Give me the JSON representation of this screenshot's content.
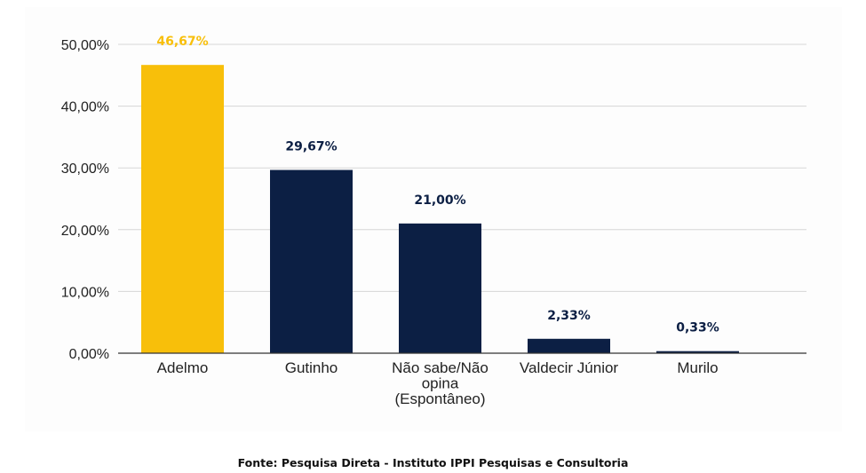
{
  "colors": {
    "highlight": "#F8BF0A",
    "primary": "#0C1F44"
  },
  "chart_data": {
    "type": "bar",
    "title": "",
    "xlabel": "",
    "ylabel": "",
    "categories": [
      [
        "Adelmo"
      ],
      [
        "Gutinho"
      ],
      [
        "Não sabe/Não",
        "opina",
        "(Espontâneo)"
      ],
      [
        "Valdecir Júnior"
      ],
      [
        "Murilo"
      ]
    ],
    "values": [
      46.67,
      29.67,
      21.0,
      2.33,
      0.33
    ],
    "value_labels": [
      "46,67%",
      "29,67%",
      "21,00%",
      "2,33%",
      "0,33%"
    ],
    "highlight_index": 0,
    "ylim": [
      0,
      50
    ],
    "yticks": [
      0,
      10,
      20,
      30,
      40,
      50
    ],
    "ytick_labels": [
      "0,00%",
      "10,00%",
      "20,00%",
      "30,00%",
      "40,00%",
      "50,00%"
    ],
    "grid": true,
    "legend": "none"
  },
  "footer": {
    "source": "Fonte: Pesquisa Direta - Instituto IPPI Pesquisas e Consultoria"
  }
}
